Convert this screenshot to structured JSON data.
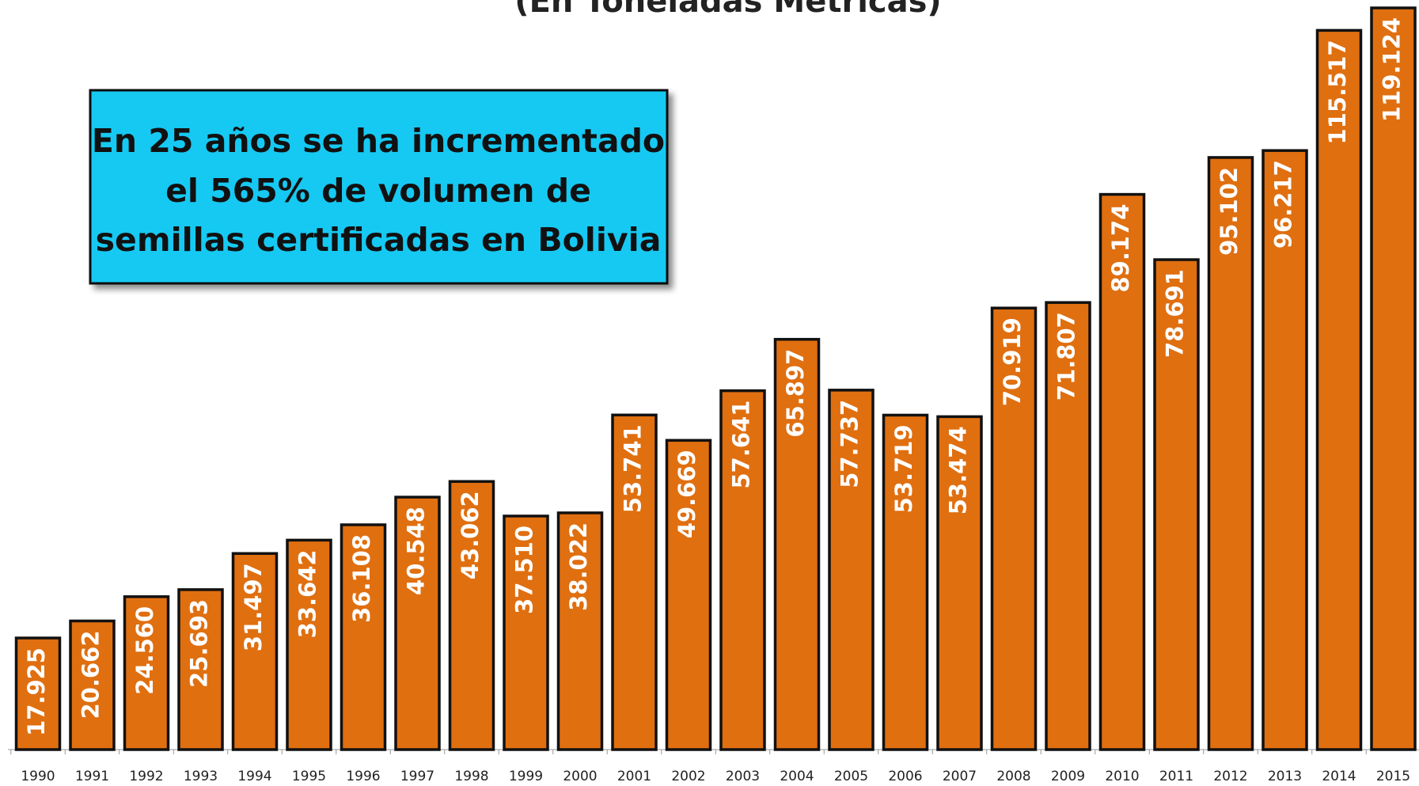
{
  "chart_data": {
    "type": "bar",
    "title": "(En Toneladas Métricas)",
    "annotation": [
      "En 25 años se ha incrementado",
      "el  565%  de volumen de",
      "semillas certificadas en Bolivia"
    ],
    "categories": [
      "1990",
      "1991",
      "1992",
      "1993",
      "1994",
      "1995",
      "1996",
      "1997",
      "1998",
      "1999",
      "2000",
      "2001",
      "2002",
      "2003",
      "2004",
      "2005",
      "2006",
      "2007",
      "2008",
      "2009",
      "2010",
      "2011",
      "2012",
      "2013",
      "2014",
      "2015"
    ],
    "values": [
      17925,
      20662,
      24560,
      25693,
      31497,
      33642,
      36108,
      40548,
      43062,
      37510,
      38022,
      53741,
      49669,
      57641,
      65897,
      57737,
      53719,
      53474,
      70919,
      71807,
      89174,
      78691,
      95102,
      96217,
      115517,
      119124
    ],
    "value_labels": [
      "17.925",
      "20.662",
      "24.560",
      "25.693",
      "31.497",
      "33.642",
      "36.108",
      "40.548",
      "43.062",
      "37.510",
      "38.022",
      "53.741",
      "49.669",
      "57.641",
      "65.897",
      "57.737",
      "53.719",
      "53.474",
      "70.919",
      "71.807",
      "89.174",
      "78.691",
      "95.102",
      "96.217",
      "115.517",
      "119.124"
    ],
    "color": "#e06f10"
  }
}
